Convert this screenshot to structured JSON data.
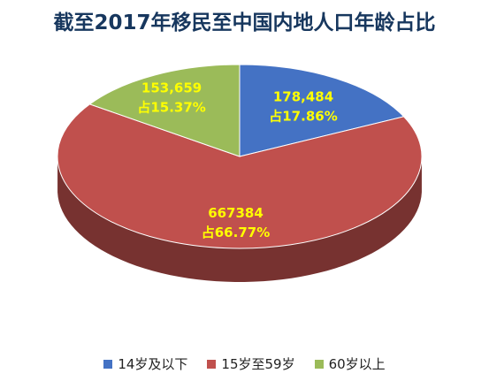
{
  "chart_data": {
    "type": "pie",
    "title": "截至2017年移民至中国内地人口年龄占比",
    "series": [
      {
        "name": "14岁及以下",
        "value": 178484,
        "value_label": "178,484",
        "pct_label": "占17.86%",
        "percent": 17.86,
        "color": "#4472c4"
      },
      {
        "name": "15岁至59岁",
        "value": 667384,
        "value_label": "667384",
        "pct_label": "占66.77%",
        "percent": 66.77,
        "color": "#c0504d"
      },
      {
        "name": "60岁以上",
        "value": 153659,
        "value_label": "153,659",
        "pct_label": "占15.37%",
        "percent": 15.37,
        "color": "#9bbb59"
      }
    ],
    "legend_position": "bottom",
    "label_color": "#ffff00",
    "style": "3d"
  }
}
